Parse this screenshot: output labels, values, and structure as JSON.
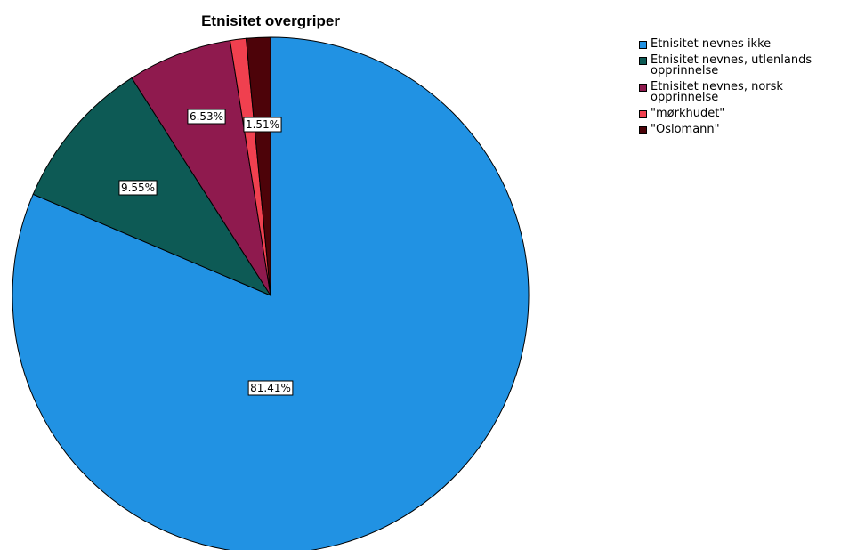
{
  "chart_data": {
    "type": "pie",
    "title": "Etnisitet overgriper",
    "legend_position": "top-right",
    "start_angle_deg": 0,
    "direction": "clockwise",
    "slices": [
      {
        "label": "Etnisitet nevnes ikke",
        "value": 81.41,
        "data_label": "81.41%",
        "color": "#2192e3"
      },
      {
        "label": "Etnisitet nevnes, utlenlands opprinnelse",
        "value": 9.55,
        "data_label": "9.55%",
        "color": "#0d5a55"
      },
      {
        "label": "Etnisitet nevnes, norsk opprinnelse",
        "value": 6.53,
        "data_label": "6.53%",
        "color": "#8f1a4e"
      },
      {
        "label": "\"mørkhudet\"",
        "value": 1.0,
        "data_label": "",
        "color": "#f0404f"
      },
      {
        "label": "\"Oslomann\"",
        "value": 1.51,
        "data_label": "1.51%",
        "color": "#4d0309"
      }
    ]
  }
}
